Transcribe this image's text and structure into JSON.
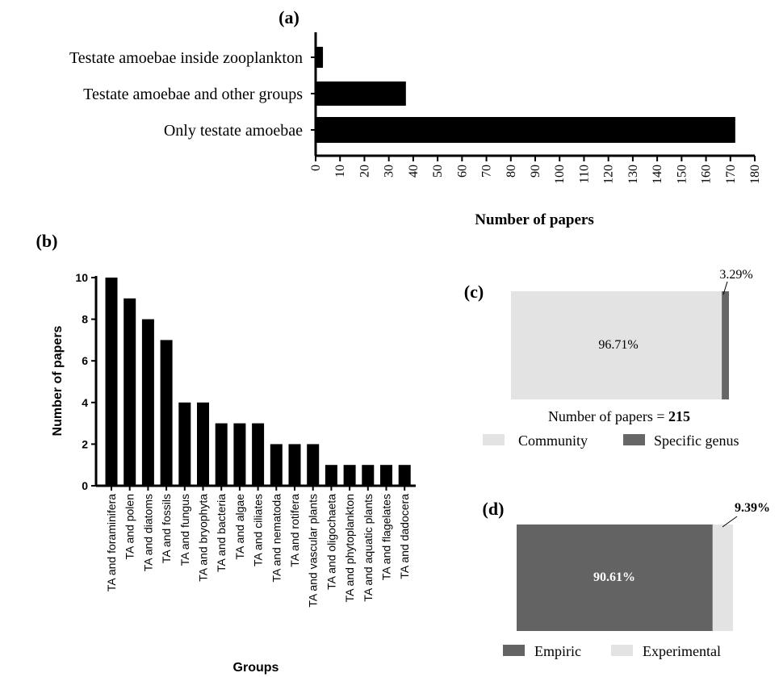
{
  "chart_data": [
    {
      "panel": "(a)",
      "type": "bar",
      "orientation": "horizontal",
      "categories": [
        "Testate amoebae inside zooplankton",
        "Testate amoebae and other groups",
        "Only testate amoebae"
      ],
      "values": [
        3,
        37,
        172
      ],
      "xlabel": "Number of papers",
      "ylabel": "",
      "xlim": [
        0,
        180
      ],
      "xticks": [
        0,
        10,
        20,
        30,
        40,
        50,
        60,
        70,
        80,
        90,
        100,
        110,
        120,
        130,
        140,
        150,
        160,
        170,
        180
      ],
      "color": "#000000"
    },
    {
      "panel": "(b)",
      "type": "bar",
      "orientation": "vertical",
      "categories": [
        "TA and foraminifera",
        "TA and polen",
        "TA and diatoms",
        "TA and fossils",
        "TA and fungus",
        "TA and bryophyta",
        "TA and bacteria",
        "TA and algae",
        "TA and ciliates",
        "TA and nematoda",
        "TA and rotifera",
        "TA and vascular plants",
        "TA and oligochaeta",
        "TA and phytoplankton",
        "TA and aquatic plants",
        "TA and flagelates",
        "TA and dadocera"
      ],
      "values": [
        10,
        9,
        8,
        7,
        4,
        4,
        3,
        3,
        3,
        2,
        2,
        2,
        1,
        1,
        1,
        1,
        1
      ],
      "xlabel": "Groups",
      "ylabel": "Number of papers",
      "ylim": [
        0,
        10
      ],
      "yticks": [
        0,
        2,
        4,
        6,
        8,
        10
      ],
      "color": "#000000"
    },
    {
      "panel": "(c)",
      "type": "bar",
      "stacked": true,
      "series": [
        {
          "name": "Community",
          "value": 96.71,
          "label": "96.71%",
          "color": "#e3e3e3"
        },
        {
          "name": "Specific genus",
          "value": 3.29,
          "label": "3.29%",
          "color": "#666666"
        }
      ],
      "note_prefix": "Number of papers = ",
      "note_value": "215",
      "legend": "bottom"
    },
    {
      "panel": "(d)",
      "type": "bar",
      "stacked": true,
      "series": [
        {
          "name": "Empiric",
          "value": 90.61,
          "label": "90.61%",
          "color": "#636363"
        },
        {
          "name": "Experimental",
          "value": 9.39,
          "label": "9.39%",
          "color": "#e3e3e3"
        }
      ],
      "legend": "bottom"
    }
  ]
}
